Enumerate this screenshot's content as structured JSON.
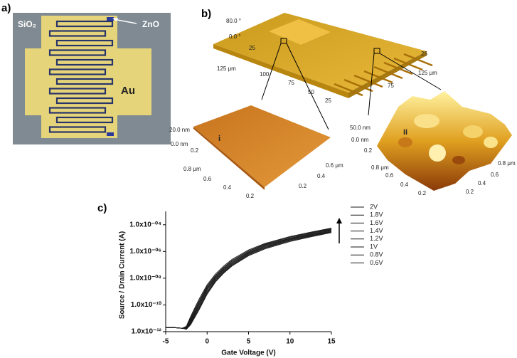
{
  "panel_a": {
    "label": "a)",
    "texts": [
      "SiO₂",
      "ZnO",
      "Au"
    ]
  },
  "panel_b": {
    "label": "b)",
    "main_texts": [
      "80.0 °",
      "0.0 °",
      "25",
      "125 μm",
      "100",
      "75",
      "50",
      "25",
      "25",
      "125 μm",
      "75"
    ],
    "inset_i": {
      "marker": "i",
      "texts": [
        "20.0 nm",
        "0.0 nm",
        "0.2",
        "0.8 μm",
        "0.6",
        "0.4",
        "0.2",
        "0.6 μm",
        "0.4",
        "0.2"
      ]
    },
    "inset_ii": {
      "marker": "ii",
      "texts": [
        "50.0 nm",
        "0.0 nm",
        "0.2",
        "0.8 μm",
        "0.6",
        "0.4",
        "0.2",
        "0.8 μm",
        "0.6",
        "0.4",
        "0.2"
      ]
    }
  },
  "panel_c": {
    "label": "c)"
  },
  "chart_data": {
    "type": "line",
    "x_label": "Gate Voltage  (V)",
    "y_label": "Source / Drain Current (A)",
    "x": [
      -5,
      -4,
      -3,
      -2.5,
      -2,
      -1,
      0,
      1,
      2,
      3,
      5,
      7,
      10,
      12.5,
      15
    ],
    "series": [
      {
        "name": "2V",
        "color": "#1a1a1a",
        "values": [
          2e-12,
          2e-12,
          1.8e-12,
          2.5e-12,
          1.3e-11,
          2.5e-10,
          3.2e-09,
          2e-08,
          8e-08,
          2.5e-07,
          1.3e-06,
          4e-06,
          1.3e-05,
          2.8e-05,
          5.6e-05
        ]
      },
      {
        "name": "1.8V",
        "color": "#1a1a1a",
        "values": [
          2e-12,
          2e-12,
          1.8e-12,
          2.2e-12,
          1e-11,
          1.8e-10,
          2.5e-09,
          1.6e-08,
          6.5e-08,
          2.1e-07,
          1.1e-06,
          3.5e-06,
          1.15e-05,
          2.5e-05,
          5e-05
        ]
      },
      {
        "name": "1.6V",
        "color": "#1a1a1a",
        "values": [
          2e-12,
          2e-12,
          1.8e-12,
          2e-12,
          8e-12,
          1.4e-10,
          2e-09,
          1.3e-08,
          5.5e-08,
          1.8e-07,
          9.5e-07,
          3.1e-06,
          1e-05,
          2.2e-05,
          4.5e-05
        ]
      },
      {
        "name": "1.4V",
        "color": "#1a1a1a",
        "values": [
          2e-12,
          2e-12,
          1.8e-12,
          1.8e-12,
          6.5e-12,
          1.1e-10,
          1.6e-09,
          1.1e-08,
          4.6e-08,
          1.5e-07,
          8.3e-07,
          2.7e-06,
          9e-06,
          1.95e-05,
          4e-05
        ]
      },
      {
        "name": "1.2V",
        "color": "#1a1a1a",
        "values": [
          2e-12,
          2e-12,
          1.8e-12,
          1.7e-12,
          5.5e-12,
          8.5e-11,
          1.3e-09,
          9e-09,
          3.9e-08,
          1.3e-07,
          7.2e-07,
          2.4e-06,
          8e-06,
          1.75e-05,
          3.6e-05
        ]
      },
      {
        "name": "1V",
        "color": "#1a1a1a",
        "values": [
          2e-12,
          2e-12,
          1.8e-12,
          1.6e-12,
          4.5e-12,
          6.5e-11,
          1e-09,
          7.5e-09,
          3.3e-08,
          1.1e-07,
          6.3e-07,
          2.1e-06,
          7.1e-06,
          1.55e-05,
          3.2e-05
        ]
      },
      {
        "name": "0.8V",
        "color": "#1a1a1a",
        "values": [
          2e-12,
          2e-12,
          1.8e-12,
          1.6e-12,
          3.8e-12,
          5e-11,
          8e-10,
          6.2e-09,
          2.8e-08,
          9.5e-08,
          5.5e-07,
          1.85e-06,
          6.3e-06,
          1.4e-05,
          2.9e-05
        ]
      },
      {
        "name": "0.6V",
        "color": "#1a1a1a",
        "values": [
          2e-12,
          2e-12,
          1.8e-12,
          1.5e-12,
          3.2e-12,
          4e-11,
          6.5e-10,
          5.2e-09,
          2.4e-08,
          8.2e-08,
          4.8e-07,
          1.6e-06,
          5.6e-06,
          1.25e-05,
          2.6e-05
        ]
      }
    ],
    "xlim": [
      -5,
      15
    ],
    "xticks": [
      -5,
      0,
      5,
      10,
      15
    ],
    "ylim": [
      1e-12,
      0.001
    ],
    "yscale": "log",
    "yticks": [
      {
        "value": 1e-12,
        "label": "1.0x10⁻¹²"
      },
      {
        "value": 1e-10,
        "label": "1.0x10⁻¹⁰"
      },
      {
        "value": 1e-08,
        "label": "1.0x10⁻⁰⁸"
      },
      {
        "value": 1e-06,
        "label": "1.0x10⁻⁰⁶"
      },
      {
        "value": 0.0001,
        "label": "1.0x10⁻⁰⁴"
      }
    ],
    "legend": "right",
    "grid": false
  }
}
